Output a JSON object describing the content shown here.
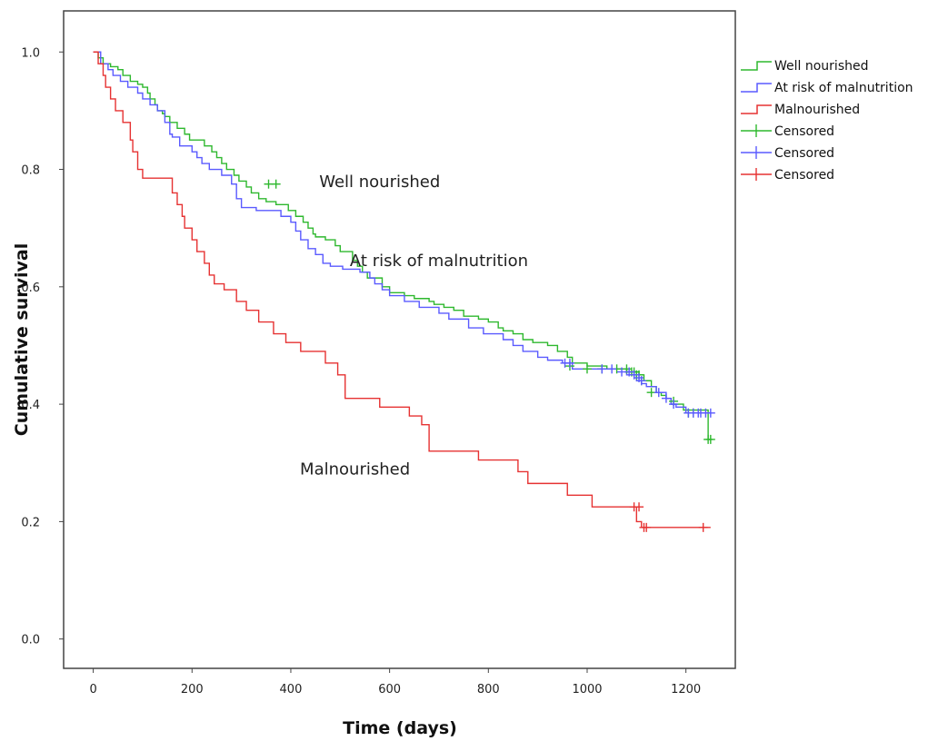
{
  "chart_data": {
    "type": "line",
    "subtype": "kaplan-meier step",
    "xlabel": "Time (days)",
    "ylabel": "Cumulative survival",
    "xlim": [
      -60,
      1300
    ],
    "ylim": [
      -0.05,
      1.07
    ],
    "xticks": [
      0,
      200,
      400,
      600,
      800,
      1000,
      1200
    ],
    "yticks": [
      "0.0",
      "0.2",
      "0.4",
      "0.6",
      "0.8",
      "1.0"
    ],
    "grid": false,
    "legend_position": "outside-right-top",
    "legend": [
      {
        "label": "Well nourished",
        "color": "#2eb82e",
        "marker": "step"
      },
      {
        "label": "At risk of malnutrition",
        "color": "#5a5aff",
        "marker": "step"
      },
      {
        "label": "Malnourished",
        "color": "#e63232",
        "marker": "step"
      },
      {
        "label": "Censored",
        "color": "#2eb82e",
        "marker": "plus"
      },
      {
        "label": "Censored",
        "color": "#5a5aff",
        "marker": "plus"
      },
      {
        "label": "Censored",
        "color": "#e63232",
        "marker": "plus"
      }
    ],
    "annotations": [
      {
        "text": "Well nourished",
        "x": 580,
        "y": 0.77
      },
      {
        "text": "At risk of malnutrition",
        "x": 700,
        "y": 0.635
      },
      {
        "text": "Malnourished",
        "x": 530,
        "y": 0.28
      }
    ],
    "series": [
      {
        "name": "Well nourished",
        "color": "#2eb82e",
        "x": [
          0,
          10,
          20,
          35,
          50,
          60,
          75,
          90,
          100,
          110,
          115,
          125,
          130,
          140,
          145,
          155,
          170,
          185,
          195,
          225,
          240,
          250,
          260,
          270,
          285,
          295,
          310,
          320,
          335,
          350,
          370,
          395,
          410,
          425,
          435,
          445,
          450,
          470,
          490,
          500,
          525,
          535,
          545,
          555,
          585,
          600,
          630,
          650,
          680,
          690,
          710,
          730,
          750,
          780,
          800,
          820,
          830,
          850,
          870,
          890,
          920,
          940,
          960,
          970,
          1000,
          1040,
          1080,
          1105,
          1115,
          1130,
          1140,
          1150,
          1160,
          1170,
          1195,
          1245,
          1250
        ],
        "y": [
          1.0,
          0.99,
          0.98,
          0.975,
          0.97,
          0.96,
          0.95,
          0.945,
          0.94,
          0.93,
          0.92,
          0.91,
          0.9,
          0.895,
          0.89,
          0.88,
          0.87,
          0.86,
          0.85,
          0.84,
          0.83,
          0.82,
          0.81,
          0.8,
          0.79,
          0.78,
          0.77,
          0.76,
          0.75,
          0.745,
          0.74,
          0.73,
          0.72,
          0.71,
          0.7,
          0.69,
          0.685,
          0.68,
          0.67,
          0.66,
          0.645,
          0.635,
          0.625,
          0.615,
          0.6,
          0.59,
          0.585,
          0.58,
          0.575,
          0.57,
          0.565,
          0.56,
          0.55,
          0.545,
          0.54,
          0.53,
          0.525,
          0.52,
          0.51,
          0.505,
          0.5,
          0.49,
          0.48,
          0.47,
          0.465,
          0.46,
          0.455,
          0.45,
          0.44,
          0.43,
          0.42,
          0.415,
          0.41,
          0.4,
          0.39,
          0.34,
          0.34
        ],
        "censored_x": [
          355,
          370,
          965,
          1000,
          1030,
          1060,
          1080,
          1090,
          1095,
          1100,
          1105,
          1110,
          1130,
          1175,
          1205,
          1215,
          1245,
          1250
        ],
        "censored_y": [
          0.775,
          0.775,
          0.465,
          0.46,
          0.46,
          0.46,
          0.46,
          0.455,
          0.455,
          0.45,
          0.45,
          0.44,
          0.42,
          0.405,
          0.385,
          0.385,
          0.34,
          0.34
        ]
      },
      {
        "name": "At risk of malnutrition",
        "color": "#5a5aff",
        "x": [
          0,
          15,
          30,
          40,
          55,
          70,
          90,
          100,
          115,
          130,
          145,
          155,
          160,
          175,
          200,
          210,
          220,
          235,
          260,
          280,
          290,
          300,
          330,
          380,
          400,
          410,
          420,
          435,
          450,
          465,
          480,
          505,
          540,
          560,
          570,
          585,
          600,
          630,
          660,
          700,
          720,
          760,
          790,
          830,
          850,
          870,
          900,
          920,
          950,
          970,
          1080,
          1100,
          1110,
          1120,
          1140,
          1160,
          1170,
          1180,
          1200,
          1250
        ],
        "y": [
          1.0,
          0.98,
          0.97,
          0.96,
          0.95,
          0.94,
          0.93,
          0.92,
          0.91,
          0.9,
          0.88,
          0.86,
          0.855,
          0.84,
          0.83,
          0.82,
          0.81,
          0.8,
          0.79,
          0.775,
          0.75,
          0.735,
          0.73,
          0.72,
          0.71,
          0.695,
          0.68,
          0.665,
          0.655,
          0.64,
          0.635,
          0.63,
          0.625,
          0.615,
          0.605,
          0.595,
          0.585,
          0.575,
          0.565,
          0.555,
          0.545,
          0.53,
          0.52,
          0.51,
          0.5,
          0.49,
          0.48,
          0.475,
          0.47,
          0.46,
          0.45,
          0.44,
          0.435,
          0.43,
          0.42,
          0.41,
          0.4,
          0.395,
          0.385,
          0.385
        ],
        "censored_x": [
          955,
          965,
          1030,
          1050,
          1070,
          1085,
          1095,
          1105,
          1110,
          1145,
          1160,
          1175,
          1205,
          1215,
          1225,
          1230,
          1240,
          1250
        ],
        "censored_y": [
          0.47,
          0.47,
          0.46,
          0.46,
          0.455,
          0.455,
          0.45,
          0.445,
          0.44,
          0.42,
          0.41,
          0.4,
          0.385,
          0.385,
          0.385,
          0.385,
          0.385,
          0.385
        ]
      },
      {
        "name": "Malnourished",
        "color": "#e63232",
        "x": [
          0,
          10,
          20,
          25,
          35,
          45,
          60,
          75,
          80,
          90,
          100,
          160,
          170,
          180,
          185,
          200,
          210,
          225,
          235,
          245,
          265,
          290,
          310,
          335,
          365,
          390,
          420,
          470,
          495,
          510,
          580,
          640,
          665,
          680,
          700,
          730,
          780,
          860,
          880,
          960,
          1010,
          1100,
          1110,
          1250
        ],
        "y": [
          1.0,
          0.98,
          0.96,
          0.94,
          0.92,
          0.9,
          0.88,
          0.85,
          0.83,
          0.8,
          0.785,
          0.76,
          0.74,
          0.72,
          0.7,
          0.68,
          0.66,
          0.64,
          0.62,
          0.605,
          0.595,
          0.575,
          0.56,
          0.54,
          0.52,
          0.505,
          0.49,
          0.47,
          0.45,
          0.41,
          0.395,
          0.38,
          0.365,
          0.32,
          0.32,
          0.32,
          0.305,
          0.285,
          0.265,
          0.245,
          0.225,
          0.2,
          0.19,
          0.19
        ],
        "censored_x": [
          1095,
          1105,
          1115,
          1120,
          1235
        ],
        "censored_y": [
          0.225,
          0.225,
          0.19,
          0.19,
          0.19
        ]
      }
    ]
  }
}
